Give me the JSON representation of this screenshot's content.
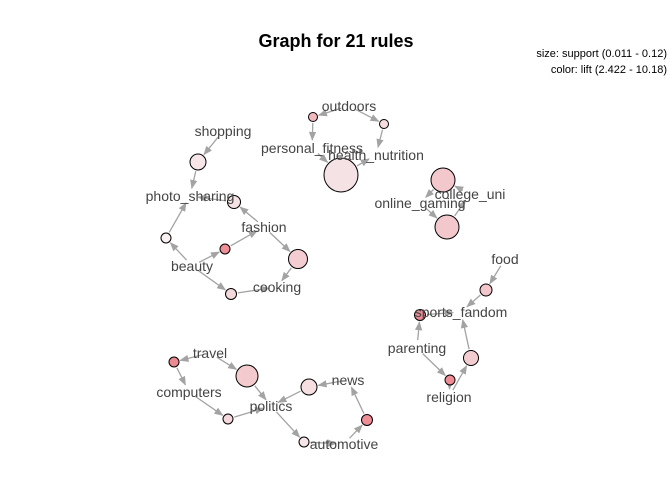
{
  "title": "Graph for 21 rules",
  "legend": {
    "size": "size: support (0.011 - 0.12)",
    "color": "color: lift (2.422 - 10.18)"
  },
  "colors": {
    "edge": "#a3a3a3",
    "label": "#444444"
  },
  "items": [
    {
      "id": "outdoors",
      "label": "outdoors"
    },
    {
      "id": "shopping",
      "label": "shopping"
    },
    {
      "id": "personal_fitness",
      "label": "personal_fitness"
    },
    {
      "id": "health_nutrition",
      "label": "health_nutrition"
    },
    {
      "id": "photo_sharing",
      "label": "photo_sharing"
    },
    {
      "id": "college_uni",
      "label": "college_uni"
    },
    {
      "id": "online_gaming",
      "label": "online_gaming"
    },
    {
      "id": "fashion",
      "label": "fashion"
    },
    {
      "id": "beauty",
      "label": "beauty"
    },
    {
      "id": "cooking",
      "label": "cooking"
    },
    {
      "id": "food",
      "label": "food"
    },
    {
      "id": "sports_fandom",
      "label": "sports_fandom"
    },
    {
      "id": "parenting",
      "label": "parenting"
    },
    {
      "id": "religion",
      "label": "religion"
    },
    {
      "id": "travel",
      "label": "travel"
    },
    {
      "id": "computers",
      "label": "computers"
    },
    {
      "id": "news",
      "label": "news"
    },
    {
      "id": "politics",
      "label": "politics"
    },
    {
      "id": "automotive",
      "label": "automotive"
    }
  ]
}
